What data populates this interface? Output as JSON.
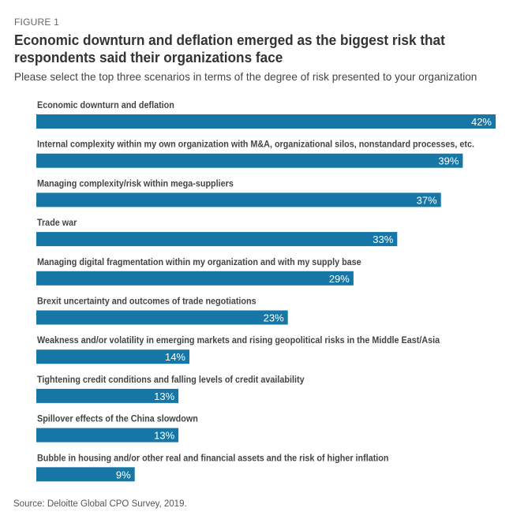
{
  "figure_label": "FIGURE 1",
  "title": "Economic downturn and deflation emerged as the biggest risk that respondents said their organizations face",
  "subtitle": "Please select the top three scenarios in terms of the degree of risk presented to your organization",
  "source": "Source: Deloitte Global CPO Survey, 2019.",
  "colors": {
    "bar": "#1677a6",
    "label": "#444444",
    "value_text": "#ffffff"
  },
  "chart_data": {
    "type": "bar",
    "orientation": "horizontal",
    "title": "Economic downturn and deflation emerged as the biggest risk that respondents said their organizations face",
    "subtitle": "Please select the top three scenarios in terms of the degree of risk presented to your organization",
    "xlabel": "",
    "ylabel": "",
    "unit": "%",
    "xlim": [
      0,
      42
    ],
    "grid": false,
    "legend": "none",
    "categories": [
      "Economic downturn and deflation",
      "Internal complexity within my own organization with M&A, organizational silos, nonstandard processes, etc.",
      "Managing complexity/risk within mega-suppliers",
      "Trade war",
      "Managing digital fragmentation within my organization and with my supply base",
      "Brexit uncertainty and outcomes of trade negotiations",
      "Weakness and/or volatility in emerging markets and rising geopolitical risks in the Middle East/Asia",
      "Tightening credit conditions and falling levels of credit availability",
      "Spillover effects of the China slowdown",
      "Bubble in housing and/or other real and financial assets and the risk of higher inflation"
    ],
    "values": [
      42,
      39,
      37,
      33,
      29,
      23,
      14,
      13,
      13,
      9
    ],
    "value_labels": [
      "42%",
      "39%",
      "37%",
      "33%",
      "29%",
      "23%",
      "14%",
      "13%",
      "13%",
      "9%"
    ]
  }
}
